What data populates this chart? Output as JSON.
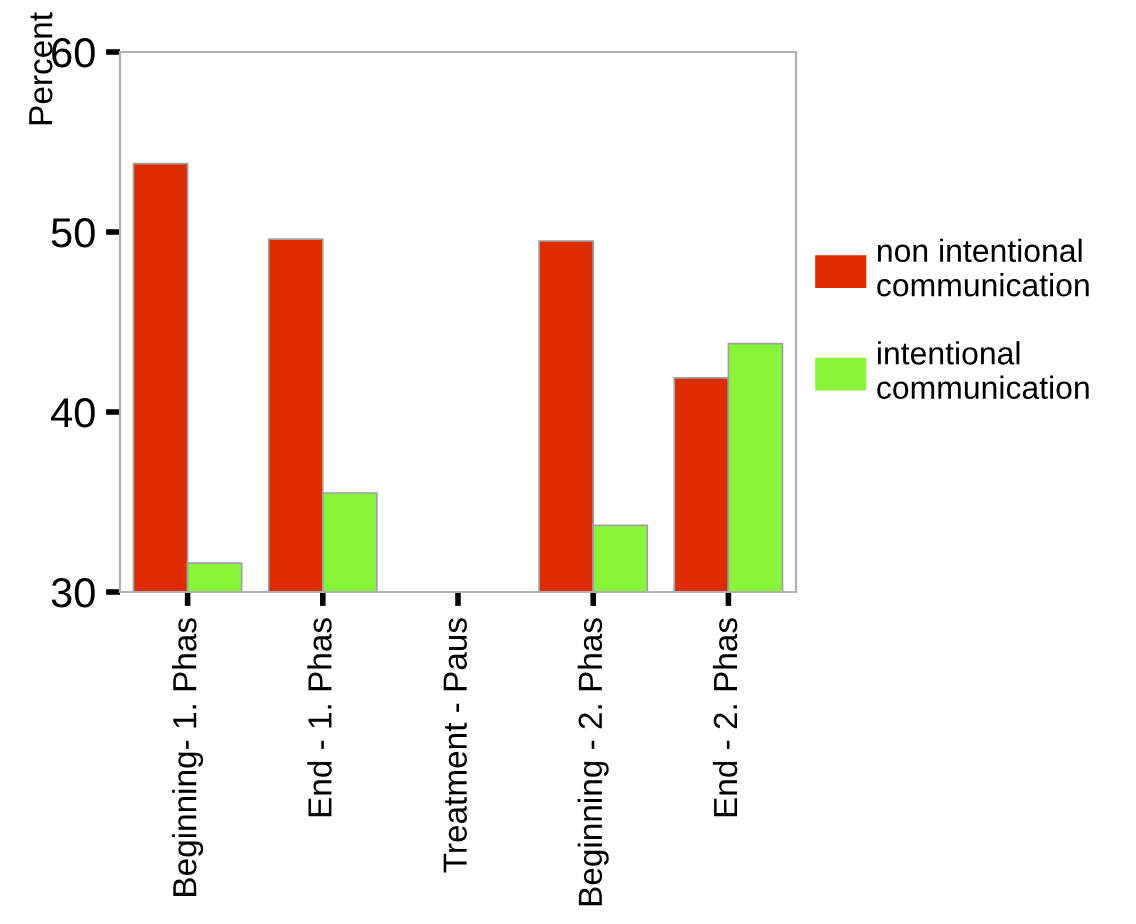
{
  "chart_data": {
    "type": "bar",
    "ylabel": "Percent",
    "categories": [
      "Beginning- 1. Phas",
      "End - 1. Phas",
      "Treatment - Paus",
      "Beginning - 2. Phas",
      "End - 2. Phas"
    ],
    "series": [
      {
        "name": "non intentional\ncommunication",
        "color": "#dd2c00",
        "values": [
          53.8,
          49.6,
          null,
          49.5,
          41.9
        ]
      },
      {
        "name": "intentional\ncommunication",
        "color": "#88f53a",
        "values": [
          31.6,
          35.5,
          null,
          33.7,
          43.8
        ]
      }
    ],
    "ylim": [
      30,
      60
    ],
    "yticks": [
      30,
      40,
      50,
      60
    ],
    "grid": false,
    "legend": "right"
  }
}
